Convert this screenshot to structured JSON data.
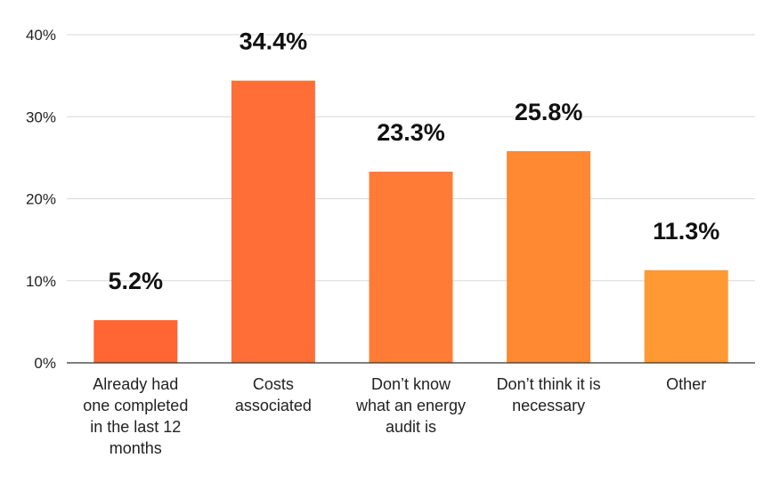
{
  "chart_data": {
    "type": "bar",
    "categories": [
      "Already had one completed in the last 12 months",
      "Costs associated",
      "Don’t know what an energy audit is",
      "Don’t think it is necessary",
      "Other"
    ],
    "category_lines": [
      [
        "Already had",
        "one completed",
        "in the last 12",
        "months"
      ],
      [
        "Costs",
        "associated"
      ],
      [
        "Don’t know",
        "what an energy",
        "audit is"
      ],
      [
        "Don’t think it is",
        "necessary"
      ],
      [
        "Other"
      ]
    ],
    "values": [
      5.2,
      34.4,
      23.3,
      25.8,
      11.3
    ],
    "data_labels": [
      "5.2%",
      "34.4%",
      "23.3%",
      "25.8%",
      "11.3%"
    ],
    "colors": [
      "#FF6633",
      "#FF6E36",
      "#FF7B36",
      "#FF8833",
      "#FF9933"
    ],
    "y_ticks": [
      0,
      10,
      20,
      30,
      40
    ],
    "y_tick_labels": [
      "0%",
      "10%",
      "20%",
      "30%",
      "40%"
    ],
    "ylim": [
      0,
      40
    ],
    "grid": true,
    "title": "",
    "xlabel": "",
    "ylabel": ""
  }
}
